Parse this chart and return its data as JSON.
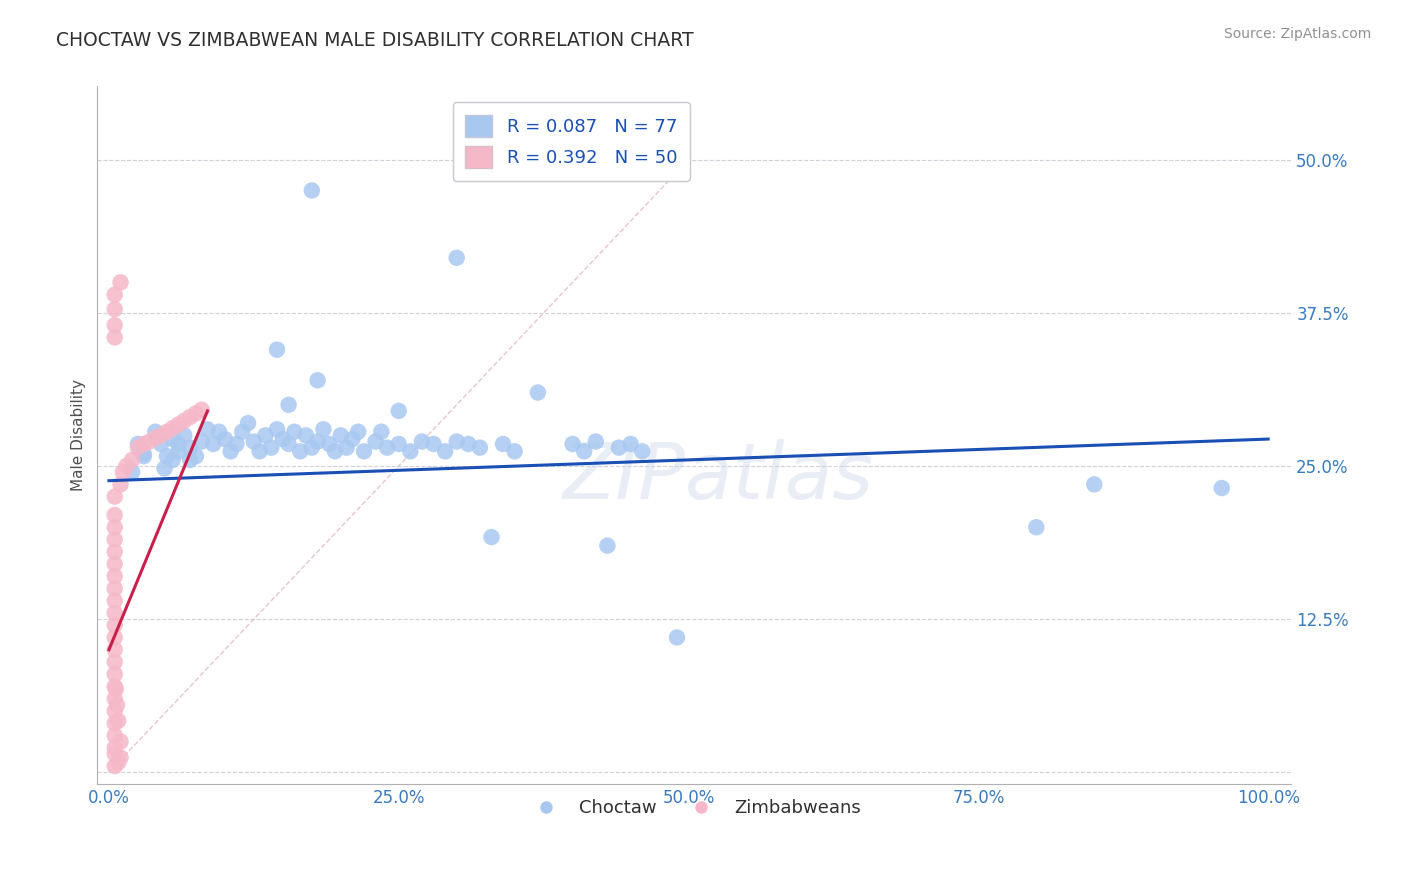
{
  "title": "CHOCTAW VS ZIMBABWEAN MALE DISABILITY CORRELATION CHART",
  "source": "Source: ZipAtlas.com",
  "xlabel_blue": "Choctaw",
  "xlabel_pink": "Zimbabweans",
  "ylabel": "Male Disability",
  "xlim": [
    -0.01,
    1.02
  ],
  "ylim": [
    -0.01,
    0.56
  ],
  "xticks": [
    0.0,
    0.25,
    0.5,
    0.75,
    1.0
  ],
  "xtick_labels": [
    "0.0%",
    "25.0%",
    "50.0%",
    "75.0%",
    "100.0%"
  ],
  "yticks": [
    0.0,
    0.125,
    0.25,
    0.375,
    0.5
  ],
  "ytick_labels": [
    "",
    "12.5%",
    "25.0%",
    "37.5%",
    "50.0%"
  ],
  "R_blue": 0.087,
  "N_blue": 77,
  "R_pink": 0.392,
  "N_pink": 50,
  "blue_color": "#a8c8f0",
  "pink_color": "#f5b8c8",
  "trend_blue": "#1a4fb5",
  "trend_pink": "#c8204a",
  "diagonal_color": "#e0b8c0",
  "watermark": "ZIPatlas",
  "blue_scatter": [
    [
      0.02,
      0.245
    ],
    [
      0.025,
      0.268
    ],
    [
      0.03,
      0.258
    ],
    [
      0.04,
      0.278
    ],
    [
      0.045,
      0.268
    ],
    [
      0.05,
      0.258
    ],
    [
      0.055,
      0.272
    ],
    [
      0.06,
      0.262
    ],
    [
      0.065,
      0.275
    ],
    [
      0.07,
      0.265
    ],
    [
      0.075,
      0.258
    ],
    [
      0.08,
      0.27
    ],
    [
      0.085,
      0.28
    ],
    [
      0.09,
      0.268
    ],
    [
      0.095,
      0.278
    ],
    [
      0.1,
      0.272
    ],
    [
      0.105,
      0.262
    ],
    [
      0.11,
      0.268
    ],
    [
      0.115,
      0.278
    ],
    [
      0.12,
      0.285
    ],
    [
      0.125,
      0.27
    ],
    [
      0.13,
      0.262
    ],
    [
      0.135,
      0.275
    ],
    [
      0.14,
      0.265
    ],
    [
      0.145,
      0.28
    ],
    [
      0.15,
      0.272
    ],
    [
      0.155,
      0.268
    ],
    [
      0.16,
      0.278
    ],
    [
      0.165,
      0.262
    ],
    [
      0.17,
      0.275
    ],
    [
      0.175,
      0.265
    ],
    [
      0.18,
      0.27
    ],
    [
      0.185,
      0.28
    ],
    [
      0.19,
      0.268
    ],
    [
      0.195,
      0.262
    ],
    [
      0.2,
      0.275
    ],
    [
      0.205,
      0.265
    ],
    [
      0.21,
      0.272
    ],
    [
      0.215,
      0.278
    ],
    [
      0.22,
      0.262
    ],
    [
      0.23,
      0.27
    ],
    [
      0.235,
      0.278
    ],
    [
      0.24,
      0.265
    ],
    [
      0.25,
      0.268
    ],
    [
      0.26,
      0.262
    ],
    [
      0.27,
      0.27
    ],
    [
      0.28,
      0.268
    ],
    [
      0.29,
      0.262
    ],
    [
      0.3,
      0.27
    ],
    [
      0.31,
      0.268
    ],
    [
      0.32,
      0.265
    ],
    [
      0.34,
      0.268
    ],
    [
      0.35,
      0.262
    ],
    [
      0.4,
      0.268
    ],
    [
      0.41,
      0.262
    ],
    [
      0.42,
      0.27
    ],
    [
      0.44,
      0.265
    ],
    [
      0.45,
      0.268
    ],
    [
      0.46,
      0.262
    ],
    [
      0.048,
      0.248
    ],
    [
      0.055,
      0.255
    ],
    [
      0.06,
      0.268
    ],
    [
      0.07,
      0.255
    ],
    [
      0.03,
      0.26
    ],
    [
      0.155,
      0.3
    ],
    [
      0.18,
      0.32
    ],
    [
      0.145,
      0.345
    ],
    [
      0.25,
      0.295
    ],
    [
      0.175,
      0.475
    ],
    [
      0.3,
      0.42
    ],
    [
      0.37,
      0.31
    ],
    [
      0.33,
      0.192
    ],
    [
      0.43,
      0.185
    ],
    [
      0.49,
      0.11
    ],
    [
      0.8,
      0.2
    ],
    [
      0.85,
      0.235
    ],
    [
      0.96,
      0.232
    ]
  ],
  "pink_scatter": [
    [
      0.005,
      0.03
    ],
    [
      0.005,
      0.04
    ],
    [
      0.005,
      0.05
    ],
    [
      0.005,
      0.06
    ],
    [
      0.005,
      0.07
    ],
    [
      0.005,
      0.08
    ],
    [
      0.005,
      0.09
    ],
    [
      0.005,
      0.1
    ],
    [
      0.005,
      0.11
    ],
    [
      0.005,
      0.12
    ],
    [
      0.005,
      0.13
    ],
    [
      0.005,
      0.14
    ],
    [
      0.005,
      0.15
    ],
    [
      0.005,
      0.16
    ],
    [
      0.005,
      0.17
    ],
    [
      0.005,
      0.18
    ],
    [
      0.005,
      0.19
    ],
    [
      0.005,
      0.2
    ],
    [
      0.005,
      0.21
    ],
    [
      0.005,
      0.225
    ],
    [
      0.01,
      0.235
    ],
    [
      0.012,
      0.245
    ],
    [
      0.015,
      0.25
    ],
    [
      0.02,
      0.255
    ],
    [
      0.025,
      0.265
    ],
    [
      0.03,
      0.268
    ],
    [
      0.035,
      0.27
    ],
    [
      0.04,
      0.273
    ],
    [
      0.045,
      0.275
    ],
    [
      0.05,
      0.278
    ],
    [
      0.055,
      0.281
    ],
    [
      0.06,
      0.284
    ],
    [
      0.065,
      0.287
    ],
    [
      0.07,
      0.29
    ],
    [
      0.075,
      0.293
    ],
    [
      0.08,
      0.296
    ],
    [
      0.005,
      0.355
    ],
    [
      0.005,
      0.365
    ],
    [
      0.005,
      0.015
    ],
    [
      0.005,
      0.02
    ],
    [
      0.01,
      0.025
    ],
    [
      0.008,
      0.042
    ],
    [
      0.007,
      0.055
    ],
    [
      0.006,
      0.068
    ],
    [
      0.005,
      0.378
    ],
    [
      0.005,
      0.39
    ],
    [
      0.01,
      0.4
    ],
    [
      0.005,
      0.005
    ],
    [
      0.008,
      0.008
    ],
    [
      0.01,
      0.012
    ]
  ],
  "blue_trend_x": [
    0.0,
    1.0
  ],
  "blue_trend_y": [
    0.238,
    0.272
  ],
  "pink_trend_x": [
    0.0,
    0.085
  ],
  "pink_trend_y": [
    0.1,
    0.295
  ]
}
